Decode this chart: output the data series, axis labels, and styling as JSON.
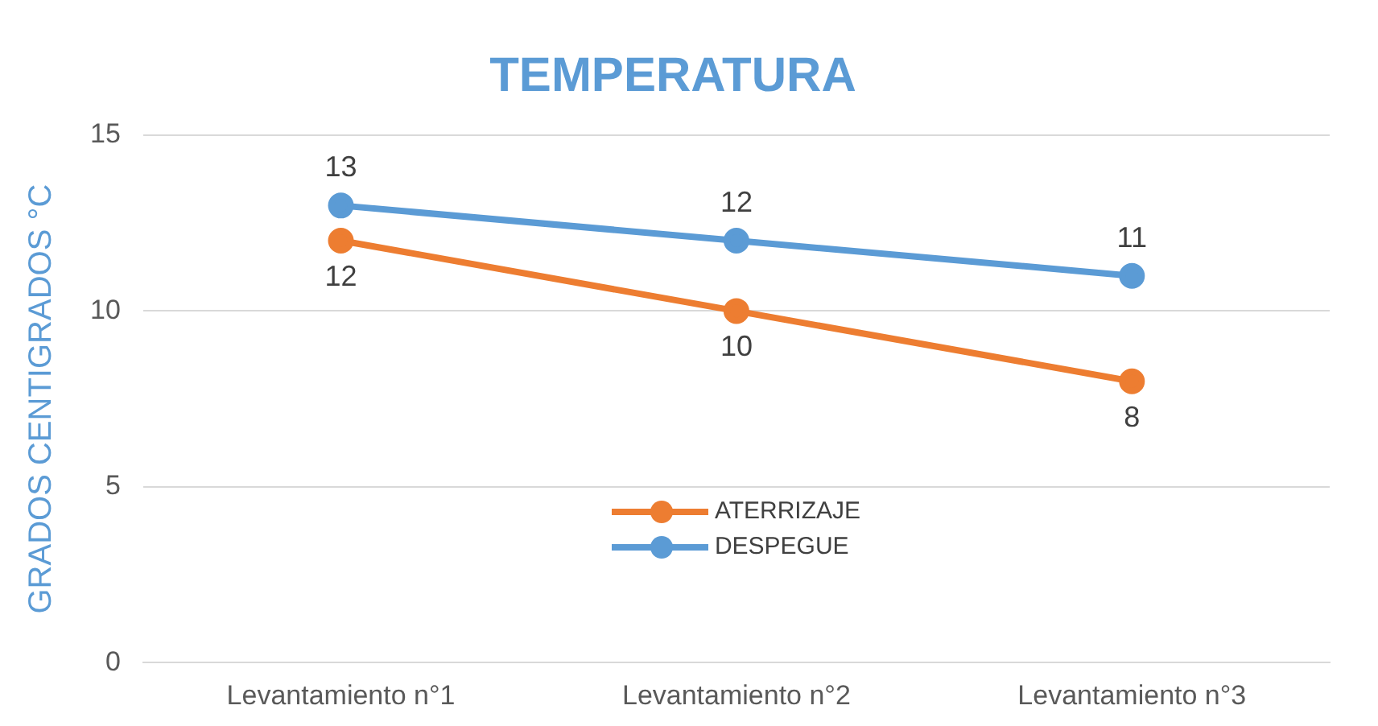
{
  "chart_data": {
    "type": "line",
    "title": "TEMPERATURA",
    "ylabel": "GRADOS CENTIGRADOS °C",
    "categories": [
      "Levantamiento n°1",
      "Levantamiento n°2",
      "Levantamiento n°3"
    ],
    "series": [
      {
        "name": "ATERRIZAJE",
        "color": "#ed7d31",
        "values": [
          12,
          10,
          8
        ]
      },
      {
        "name": "DESPEGUE",
        "color": "#5b9bd5",
        "values": [
          13,
          12,
          11
        ]
      }
    ],
    "ylim": [
      0,
      15
    ],
    "yticks": [
      0,
      5,
      10,
      15
    ],
    "grid": "y",
    "legend": "center",
    "marker": "circle",
    "line_style": "solid",
    "data_labels": true
  }
}
